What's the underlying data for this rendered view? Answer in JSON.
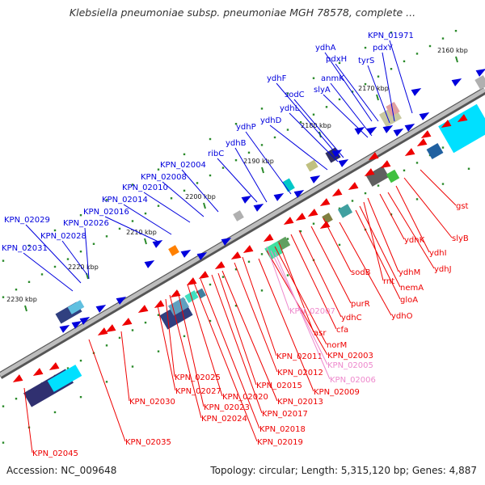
{
  "title": "Klebsiella pneumoniae subsp. pneumoniae MGH 78578, complete ...",
  "footer": {
    "accession": "Accession: NC_009648",
    "topology": "Topology: circular; Length: 5,315,120 bp; Genes: 4,887"
  },
  "colors": {
    "forward": "#0000dd",
    "reverse": "#ee0000",
    "pseudo": "#ee88cc",
    "backbone": "#808080",
    "ticks": "#2a8a2a"
  },
  "kbp_ticks": [
    "2160 kbp",
    "2170 kbp",
    "2180 kbp",
    "2190 kbp",
    "2200 kbp",
    "2210 kbp",
    "2220 kbp",
    "2230 kbp"
  ],
  "forward_labels": [
    "KPN_01971",
    "ydhA",
    "pdxH",
    "pdxY",
    "tyrS",
    "anmK",
    "slyA",
    "ydhF",
    "sodC",
    "ydhL",
    "ydhD",
    "ydhP",
    "ydhB",
    "ribC",
    "KPN_02004",
    "KPN_02008",
    "KPN_02010",
    "KPN_02014",
    "KPN_02016",
    "KPN_02029",
    "KPN_02026",
    "KPN_02028",
    "KPN_02031"
  ],
  "reverse_labels": [
    "gst",
    "slyB",
    "ydhI",
    "ydhJ",
    "ydhK",
    "ydhM",
    "rnt",
    "nemA",
    "gloA",
    "sodB",
    "ydhO",
    "purR",
    "ydhC",
    "cfa",
    "asr",
    "norM",
    "KPN_02003",
    "KPN_02011",
    "KPN_02012",
    "KPN_02009",
    "KPN_02013",
    "KPN_02015",
    "KPN_02017",
    "KPN_02018",
    "KPN_02019",
    "KPN_02020",
    "KPN_02023",
    "KPN_02024",
    "KPN_02025",
    "KPN_02027",
    "KPN_02030",
    "KPN_02035",
    "KPN_02045"
  ],
  "pseudo_labels": [
    "KPN_02007",
    "KPN_02005",
    "KPN_02006"
  ]
}
